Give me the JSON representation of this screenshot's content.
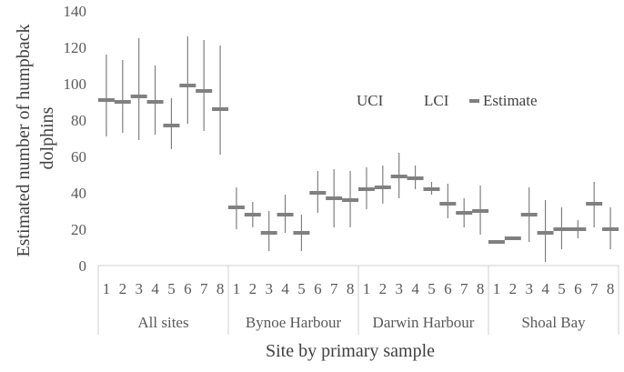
{
  "chart_data": {
    "type": "stock",
    "ylabel": "Estimated number of humpback dolphins",
    "xlabel": "Site by primary sample",
    "ylim": [
      0,
      140
    ],
    "yticks": [
      0,
      20,
      40,
      60,
      80,
      100,
      120,
      140
    ],
    "grid": false,
    "legend": {
      "position": "right-center",
      "entries": [
        "UCI",
        "LCI",
        "Estimate"
      ]
    },
    "groups": [
      {
        "name": "All sites",
        "samples": [
          "1",
          "2",
          "3",
          "4",
          "5",
          "6",
          "7",
          "8"
        ]
      },
      {
        "name": "Bynoe Harbour",
        "samples": [
          "1",
          "2",
          "3",
          "4",
          "5",
          "6",
          "7",
          "8"
        ]
      },
      {
        "name": "Darwin Harbour",
        "samples": [
          "1",
          "2",
          "3",
          "4",
          "5",
          "6",
          "7",
          "8"
        ]
      },
      {
        "name": "Shoal Bay",
        "samples": [
          "1",
          "2",
          "3",
          "4",
          "5",
          "6",
          "7",
          "8"
        ]
      }
    ],
    "series": [
      {
        "name": "UCI",
        "values": [
          116,
          113,
          125,
          110,
          92,
          126,
          124,
          121,
          43,
          35,
          30,
          39,
          28,
          52,
          53,
          52,
          54,
          55,
          62,
          55,
          46,
          45,
          37,
          44,
          14,
          16,
          43,
          36,
          32,
          25,
          46,
          32
        ]
      },
      {
        "name": "LCI",
        "values": [
          71,
          73,
          69,
          72,
          64,
          78,
          74,
          61,
          20,
          21,
          8,
          18,
          8,
          29,
          21,
          21,
          31,
          34,
          37,
          42,
          39,
          26,
          21,
          17,
          13,
          15,
          13,
          2,
          9,
          15,
          21,
          9
        ]
      },
      {
        "name": "Estimate",
        "values": [
          91,
          90,
          93,
          90,
          77,
          99,
          96,
          86,
          32,
          28,
          18,
          28,
          18,
          40,
          37,
          36,
          42,
          43,
          49,
          48,
          42,
          34,
          29,
          30,
          13,
          15,
          28,
          18,
          20,
          20,
          34,
          20
        ]
      }
    ]
  }
}
